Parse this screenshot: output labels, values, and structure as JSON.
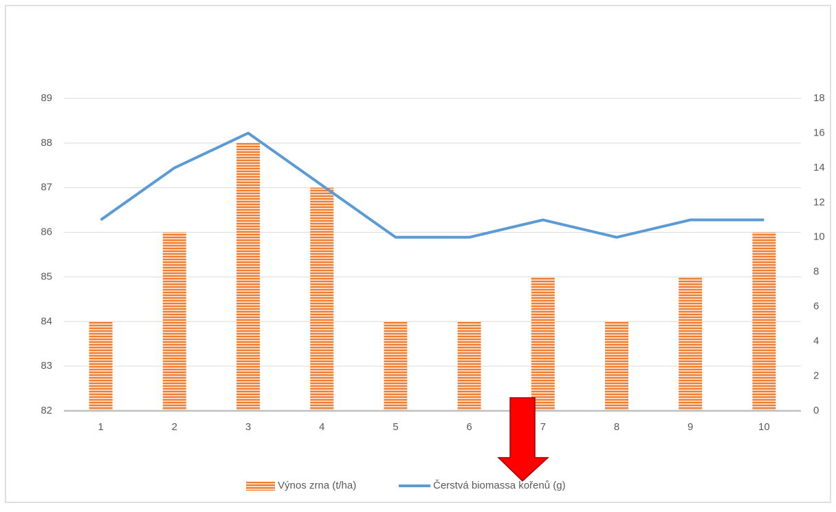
{
  "chart_data": {
    "type": "bar-line",
    "categories": [
      "1",
      "2",
      "3",
      "4",
      "5",
      "6",
      "7",
      "8",
      "9",
      "10"
    ],
    "series": [
      {
        "name": "Výnos zrna (t/ha)",
        "type": "bar",
        "color": "#ed7d31",
        "values": [
          84,
          86,
          88,
          87,
          84,
          84,
          85,
          84,
          85,
          86
        ]
      },
      {
        "name": "Čerstvá biomassa kořenů (g)",
        "type": "line",
        "axis": "y2",
        "color": "#5b9bd5",
        "values": [
          11,
          14,
          16,
          13,
          10,
          10,
          11,
          10,
          11,
          11
        ]
      }
    ],
    "ylim": [
      82,
      89
    ],
    "yticks": [
      82,
      83,
      84,
      85,
      86,
      87,
      88,
      89
    ],
    "y2lim": [
      0,
      18
    ],
    "y2ticks": [
      0,
      2,
      4,
      6,
      8,
      10,
      12,
      14,
      16,
      18
    ],
    "grid": true,
    "legend": "bottom"
  }
}
